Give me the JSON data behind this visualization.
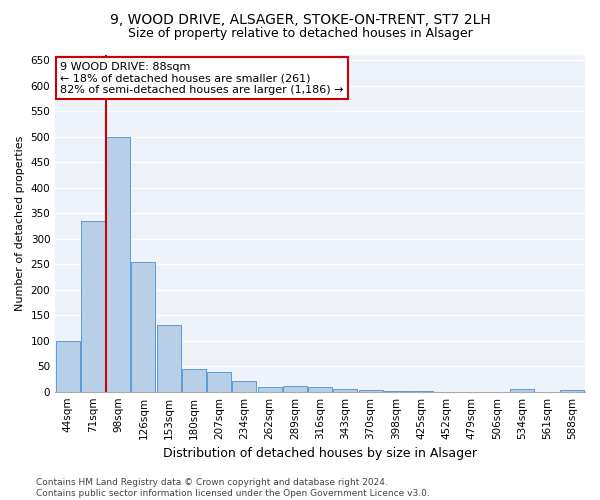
{
  "title1": "9, WOOD DRIVE, ALSAGER, STOKE-ON-TRENT, ST7 2LH",
  "title2": "Size of property relative to detached houses in Alsager",
  "xlabel": "Distribution of detached houses by size in Alsager",
  "ylabel": "Number of detached properties",
  "categories": [
    "44sqm",
    "71sqm",
    "98sqm",
    "126sqm",
    "153sqm",
    "180sqm",
    "207sqm",
    "234sqm",
    "262sqm",
    "289sqm",
    "316sqm",
    "343sqm",
    "370sqm",
    "398sqm",
    "425sqm",
    "452sqm",
    "479sqm",
    "506sqm",
    "534sqm",
    "561sqm",
    "588sqm"
  ],
  "values": [
    100,
    335,
    500,
    255,
    130,
    45,
    38,
    20,
    10,
    12,
    10,
    5,
    4,
    1,
    1,
    0,
    0,
    0,
    5,
    0,
    3
  ],
  "bar_color": "#b8cfe8",
  "bar_edge_color": "#5b9bd5",
  "vline_x": 1.5,
  "vline_color": "#cc0000",
  "annotation_text": "9 WOOD DRIVE: 88sqm\n← 18% of detached houses are smaller (261)\n82% of semi-detached houses are larger (1,186) →",
  "annotation_box_color": "white",
  "annotation_box_edge_color": "#cc0000",
  "ylim": [
    0,
    660
  ],
  "yticks": [
    0,
    50,
    100,
    150,
    200,
    250,
    300,
    350,
    400,
    450,
    500,
    550,
    600,
    650
  ],
  "background_color": "#eef2fa",
  "footer": "Contains HM Land Registry data © Crown copyright and database right 2024.\nContains public sector information licensed under the Open Government Licence v3.0.",
  "title1_fontsize": 10,
  "title2_fontsize": 9,
  "xlabel_fontsize": 9,
  "ylabel_fontsize": 8,
  "tick_fontsize": 7.5,
  "annotation_fontsize": 8,
  "footer_fontsize": 6.5
}
